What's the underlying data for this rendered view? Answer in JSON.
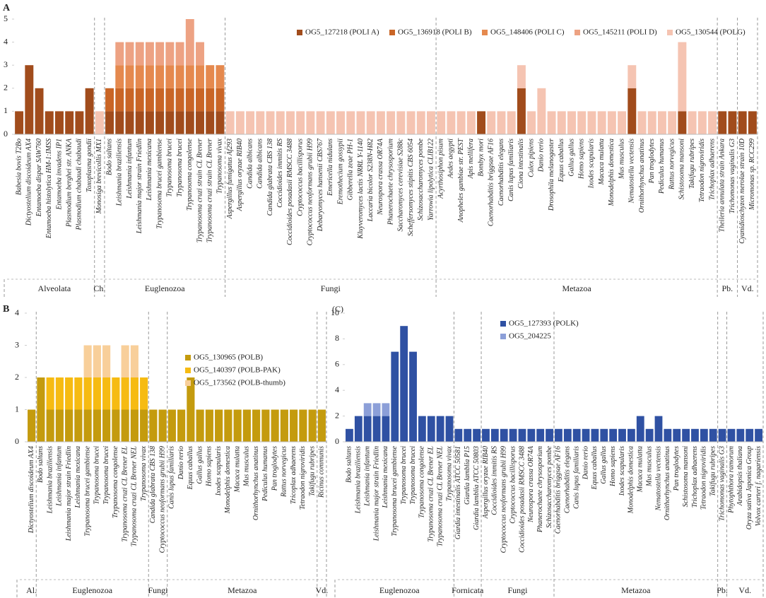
{
  "chart_data": [
    {
      "type": "bar",
      "stacked": true,
      "panel_label": "A",
      "categories": [
        "Babesia bovis T2Bo",
        "Dictyostelium discoideum AX4",
        "Entamoeba dispar SAW760",
        "Entamoeba histolytica HM-1:IMSS",
        "Entamoeba invadens IP1",
        "Plasmodium berghei str. ANKA",
        "Plasmodium chabaudi chabaudi",
        "Toxoplasma gondii",
        "Monosiga brevicollis MX1",
        "Bodo saltans",
        "Leishmania braziliensis",
        "Leishmania infantum",
        "Leishmania major strain Friedlin",
        "Leishmania mexicana",
        "Trypanosoma brucei gambiense",
        "Trypanosoma brucei",
        "Trypanosoma brucei",
        "Trypanosoma congolense",
        "Trypanosoma cruzi strain CL Brener",
        "Trypanosoma cruzi strain CL Brener",
        "Trypanosoma vivax",
        "Aspergillus fumigatus Af293",
        "Aspergillus oryzae RIB40",
        "Candida albicans",
        "Candida albicans",
        "Candida glabrata CBS 138",
        "Coccidioides immitis RS",
        "Coccidioides posadasii RMSCC 3488",
        "Cryptococcus bacillisporus",
        "Cryptococcus neoformans grubii H99",
        "Debaryomyces hansenii CBS767",
        "Emericella nidulans",
        "Eremothecium gossypii",
        "Gibberella zeae PH-1",
        "Kluyveromyces lactis NRRL Y-1140",
        "Laccaria bicolor S238N-H82",
        "Neurospora crassa OR74A",
        "Phanerochaete chrysosporium",
        "Saccharomyces cerevisiae S288c",
        "Scheffersomyces stipitis CBS 6054",
        "Schizosaccharomyces pombe",
        "Yarrowia lipolytica CLIB122",
        "Acyrthosiphon pisum",
        "Aedes aegypti",
        "Anopheles gambiae str. PEST",
        "Apis mellifera",
        "Bombyx mori",
        "Caenorhabditis briggsae AF16",
        "Caenorhabditis elegans",
        "Canis lupus familiaris",
        "Ciona intestinalis",
        "Culex pipiens",
        "Danio rerio",
        "Drosophila melanogaster",
        "Equus caballus",
        "Gallus gallus",
        "Homo sapiens",
        "Ixodes scapularis",
        "Macaca mulatta",
        "Monodelphis domestica",
        "Mus musculus",
        "Nematostella vectensis",
        "Ornithorhynchus anatinus",
        "Pan troglodytes",
        "Pediculus humanus",
        "Rattus norvegicus",
        "Schistosoma mansoni",
        "Takifugu rubripes",
        "Tetraodon nigroviridis",
        "Trichoplax adhaerens",
        "Theileria annulata strain Ankara",
        "Trichomonas vaginalis G3",
        "Cyanidioschyzon merolae strain 10D",
        "Micromonas sp. RCC299"
      ],
      "category_groups": [
        "Alveolata",
        "Alveolata",
        "Alveolata",
        "Alveolata",
        "Alveolata",
        "Alveolata",
        "Alveolata",
        "Alveolata",
        "Ch.",
        "Euglenozoa",
        "Euglenozoa",
        "Euglenozoa",
        "Euglenozoa",
        "Euglenozoa",
        "Euglenozoa",
        "Euglenozoa",
        "Euglenozoa",
        "Euglenozoa",
        "Euglenozoa",
        "Euglenozoa",
        "Euglenozoa",
        "Fungi",
        "Fungi",
        "Fungi",
        "Fungi",
        "Fungi",
        "Fungi",
        "Fungi",
        "Fungi",
        "Fungi",
        "Fungi",
        "Fungi",
        "Fungi",
        "Fungi",
        "Fungi",
        "Fungi",
        "Fungi",
        "Fungi",
        "Fungi",
        "Fungi",
        "Fungi",
        "Fungi",
        "Metazoa",
        "Metazoa",
        "Metazoa",
        "Metazoa",
        "Metazoa",
        "Metazoa",
        "Metazoa",
        "Metazoa",
        "Metazoa",
        "Metazoa",
        "Metazoa",
        "Metazoa",
        "Metazoa",
        "Metazoa",
        "Metazoa",
        "Metazoa",
        "Metazoa",
        "Metazoa",
        "Metazoa",
        "Metazoa",
        "Metazoa",
        "Metazoa",
        "Metazoa",
        "Metazoa",
        "Metazoa",
        "Metazoa",
        "Metazoa",
        "Metazoa",
        "Pb.",
        "Pb.",
        "Vd.",
        "Vd."
      ],
      "series": [
        {
          "name": "OG5_127218 (POLI A)",
          "color": "#a14c1c",
          "values": [
            1,
            3,
            2,
            1,
            1,
            1,
            1,
            2,
            0,
            1,
            1,
            1,
            1,
            1,
            1,
            1,
            1,
            1,
            1,
            1,
            1,
            0,
            0,
            0,
            0,
            0,
            0,
            0,
            0,
            0,
            0,
            0,
            0,
            0,
            0,
            0,
            0,
            0,
            0,
            0,
            0,
            0,
            0,
            0,
            0,
            0,
            1,
            0,
            0,
            0,
            2,
            0,
            0,
            0,
            0,
            0,
            0,
            0,
            0,
            0,
            0,
            2,
            0,
            0,
            0,
            0,
            1,
            0,
            0,
            0,
            1,
            1,
            1,
            1
          ]
        },
        {
          "name": "OG5_136918 (POLI B)",
          "color": "#c96526",
          "values": [
            0,
            0,
            0,
            0,
            0,
            0,
            0,
            0,
            0,
            1,
            1,
            1,
            1,
            1,
            1,
            1,
            1,
            1,
            1,
            1,
            1,
            0,
            0,
            0,
            0,
            0,
            0,
            0,
            0,
            0,
            0,
            0,
            0,
            0,
            0,
            0,
            0,
            0,
            0,
            0,
            0,
            0,
            0,
            0,
            0,
            0,
            0,
            0,
            0,
            0,
            0,
            0,
            0,
            0,
            0,
            0,
            0,
            0,
            0,
            0,
            0,
            0,
            0,
            0,
            0,
            0,
            0,
            0,
            0,
            0,
            0,
            0,
            0,
            0
          ]
        },
        {
          "name": "OG5_148406 (POLI C)",
          "color": "#e5894e",
          "values": [
            0,
            0,
            0,
            0,
            0,
            0,
            0,
            0,
            0,
            0,
            1,
            1,
            1,
            1,
            1,
            1,
            1,
            1,
            1,
            1,
            1,
            0,
            0,
            0,
            0,
            0,
            0,
            0,
            0,
            0,
            0,
            0,
            0,
            0,
            0,
            0,
            0,
            0,
            0,
            0,
            0,
            0,
            0,
            0,
            0,
            0,
            0,
            0,
            0,
            0,
            0,
            0,
            0,
            0,
            0,
            0,
            0,
            0,
            0,
            0,
            0,
            0,
            0,
            0,
            0,
            0,
            0,
            0,
            0,
            0,
            0,
            0,
            0,
            0
          ]
        },
        {
          "name": "OG5_145211 (POLI D)",
          "color": "#eda283",
          "values": [
            0,
            0,
            0,
            0,
            0,
            0,
            0,
            0,
            0,
            0,
            1,
            1,
            1,
            1,
            1,
            1,
            1,
            2,
            1,
            0,
            0,
            0,
            0,
            0,
            0,
            0,
            0,
            0,
            0,
            0,
            0,
            0,
            0,
            0,
            0,
            0,
            0,
            0,
            0,
            0,
            0,
            0,
            0,
            0,
            0,
            0,
            0,
            0,
            0,
            0,
            0,
            0,
            0,
            0,
            0,
            0,
            0,
            0,
            0,
            0,
            0,
            0,
            0,
            0,
            0,
            0,
            0,
            0,
            0,
            0,
            0,
            0,
            0,
            0
          ]
        },
        {
          "name": "OG5_130544 (POLG)",
          "color": "#f5c4b2",
          "values": [
            0,
            0,
            0,
            0,
            0,
            0,
            0,
            0,
            1,
            0,
            0,
            0,
            0,
            0,
            0,
            0,
            0,
            0,
            0,
            0,
            0,
            1,
            1,
            1,
            1,
            1,
            1,
            1,
            1,
            1,
            1,
            1,
            1,
            1,
            1,
            1,
            1,
            1,
            1,
            1,
            1,
            1,
            1,
            1,
            1,
            1,
            0,
            1,
            1,
            1,
            1,
            1,
            2,
            1,
            1,
            1,
            1,
            1,
            1,
            1,
            1,
            1,
            1,
            1,
            1,
            1,
            3,
            1,
            1,
            1,
            0,
            0,
            0,
            0
          ]
        }
      ],
      "ylim": [
        0,
        5
      ],
      "yticks": [
        0,
        1,
        2,
        3,
        4,
        5
      ]
    },
    {
      "type": "bar",
      "stacked": true,
      "panel_label": "B",
      "categories": [
        "Dictyostelium discoideum AX4",
        "Bodo saltans",
        "Leishmania braziliensis",
        "Leishmania infantum",
        "Leishmania major strain Friedlin",
        "Leishmania mexicana",
        "Trypanosoma brucei gambiense",
        "Trypanosoma brucei",
        "Trypanosoma brucei",
        "Trypanosoma congolense",
        "Trypanosoma cruzi CL Brener EL",
        "Trypanosoma cruzi CL Brener NEL",
        "Trypanosoma vivax",
        "Candida glabrata CBS 138",
        "Cryptococcus neoformans grubii H99",
        "Canis lupus familiaris",
        "Danio rerio",
        "Equus caballus",
        "Gallus gallus",
        "Homo sapiens",
        "Ixodes scapularis",
        "Monodelphis domestica",
        "Macaca mulatta",
        "Mus musculus",
        "Ornithorhynchus anatinus",
        "Pediculus humanus",
        "Pan troglodytes",
        "Rattus norvegicus",
        "Tricoplax adhaerens",
        "Tetraodon nigroviridis",
        "Takifugu rubripes",
        "Ricinus communis"
      ],
      "category_groups": [
        "Al.",
        "Euglenozoa",
        "Euglenozoa",
        "Euglenozoa",
        "Euglenozoa",
        "Euglenozoa",
        "Euglenozoa",
        "Euglenozoa",
        "Euglenozoa",
        "Euglenozoa",
        "Euglenozoa",
        "Euglenozoa",
        "Euglenozoa",
        "Fungi",
        "Fungi",
        "Metazoa",
        "Metazoa",
        "Metazoa",
        "Metazoa",
        "Metazoa",
        "Metazoa",
        "Metazoa",
        "Metazoa",
        "Metazoa",
        "Metazoa",
        "Metazoa",
        "Metazoa",
        "Metazoa",
        "Metazoa",
        "Metazoa",
        "Metazoa",
        "Vd."
      ],
      "series": [
        {
          "name": "OG5_130965 (POLB)",
          "color": "#c49b0e",
          "values": [
            1,
            2,
            1,
            1,
            1,
            1,
            1,
            1,
            1,
            1,
            1,
            1,
            1,
            1,
            1,
            1,
            1,
            2,
            1,
            1,
            1,
            1,
            1,
            1,
            1,
            1,
            1,
            1,
            1,
            1,
            1,
            1
          ]
        },
        {
          "name": "OG5_140397 (POLB-PAK)",
          "color": "#f6bb12",
          "values": [
            0,
            0,
            1,
            1,
            1,
            1,
            1,
            1,
            1,
            1,
            1,
            1,
            1,
            0,
            0,
            0,
            0,
            0,
            0,
            0,
            0,
            0,
            0,
            0,
            0,
            0,
            0,
            0,
            0,
            0,
            0,
            0
          ]
        },
        {
          "name": "OG5_173562 (POLB-thumb)",
          "color": "#f8cf9a",
          "values": [
            0,
            0,
            0,
            0,
            0,
            0,
            1,
            1,
            1,
            0,
            1,
            1,
            0,
            0,
            0,
            0,
            0,
            0,
            0,
            0,
            0,
            0,
            0,
            0,
            0,
            0,
            0,
            0,
            0,
            0,
            0,
            0
          ]
        }
      ],
      "ylim": [
        0,
        4
      ],
      "yticks": [
        0,
        1,
        2,
        3,
        4
      ]
    },
    {
      "type": "bar",
      "stacked": true,
      "panel_label": "(C)",
      "categories": [
        "Bodo saltans",
        "Leishmania braziliensis",
        "Leishmania infantum",
        "Leishmania major strain Friedlin",
        "Leishmania mexicana",
        "Trypanosoma brucei gambiense",
        "Trypanosoma brucei",
        "Trypanosoma brucei",
        "Trypanosoma congolense",
        "Trypanosoma cruzi CL Brener EL",
        "Trypanosoma cruzi CL Brener NEL",
        "Trypanosoma vivax",
        "Giardia intestinalis ATCC 50581",
        "Giardia lamblia P15",
        "Giardia lamblia ATCC 50803",
        "Aspergillus oryzae RIB40",
        "Coccidioides immitis RS",
        "Cryptococcus neoformans grubii H99",
        "Cryptococcus bacillisporus",
        "Coccidioides posadasii RMSCC 3488",
        "Neurospora crassa OR74A",
        "Phanerochaete chrysosporium",
        "Schizosaccharomyces pombe",
        "Caenorhabditis briggsae AF16",
        "Caenorhabditis elegans",
        "Canis lupus familiaris",
        "Danio rerio",
        "Equus caballus",
        "Gallus gallus",
        "Homo sapiens",
        "Ixodes scapularis",
        "Monodelphis domestica",
        "Macaca mulatta",
        "Mus musculus",
        "Nematostella vectensis",
        "Ornithorhynchus anatinus",
        "Pan troglodytes",
        "Schistosoma mansoni",
        "Trichoplax adhaerens",
        "Tetraodon nigroviridis",
        "Takifugu rubripes",
        "Trichomonas vaginalis G3",
        "Phytophthora ramorum",
        "Arabidopsis thaliana",
        "Oryza sativa Japonica Group",
        "Volvox carteri f. nagariensis"
      ],
      "category_groups": [
        "Euglenozoa",
        "Euglenozoa",
        "Euglenozoa",
        "Euglenozoa",
        "Euglenozoa",
        "Euglenozoa",
        "Euglenozoa",
        "Euglenozoa",
        "Euglenozoa",
        "Euglenozoa",
        "Euglenozoa",
        "Euglenozoa",
        "Fornicata",
        "Fornicata",
        "Fornicata",
        "Fungi",
        "Fungi",
        "Fungi",
        "Fungi",
        "Fungi",
        "Fungi",
        "Fungi",
        "Fungi",
        "Metazoa",
        "Metazoa",
        "Metazoa",
        "Metazoa",
        "Metazoa",
        "Metazoa",
        "Metazoa",
        "Metazoa",
        "Metazoa",
        "Metazoa",
        "Metazoa",
        "Metazoa",
        "Metazoa",
        "Metazoa",
        "Metazoa",
        "Metazoa",
        "Metazoa",
        "Metazoa",
        "Pb.",
        "Vd.",
        "Vd.",
        "Vd.",
        "Vd."
      ],
      "series": [
        {
          "name": "OG5_127393 (POLK)",
          "color": "#2f51a3",
          "values": [
            1,
            2,
            2,
            2,
            2,
            7,
            9,
            7,
            2,
            2,
            2,
            2,
            1,
            1,
            1,
            1,
            1,
            1,
            1,
            1,
            1,
            1,
            1,
            1,
            1,
            1,
            1,
            1,
            1,
            1,
            1,
            1,
            2,
            1,
            2,
            1,
            1,
            1,
            1,
            1,
            1,
            1,
            1,
            1,
            1,
            1
          ]
        },
        {
          "name": "OG5_204225",
          "color": "#8c9fd8",
          "values": [
            0,
            0,
            1,
            1,
            1,
            0,
            0,
            0,
            0,
            0,
            0,
            0,
            0,
            0,
            0,
            0,
            0,
            0,
            0,
            0,
            0,
            0,
            0,
            0,
            0,
            0,
            0,
            0,
            0,
            0,
            0,
            0,
            0,
            0,
            0,
            0,
            0,
            0,
            0,
            0,
            0,
            0,
            0,
            0,
            0,
            0
          ]
        }
      ],
      "ylim": [
        0,
        10
      ],
      "yticks": [
        0,
        2,
        4,
        6,
        8,
        10
      ]
    }
  ]
}
